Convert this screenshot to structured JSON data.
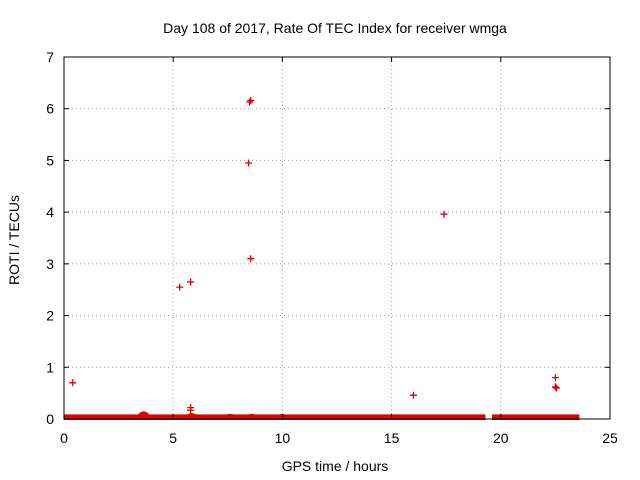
{
  "chart_data": {
    "type": "scatter",
    "title": "Day 108 of 2017, Rate Of TEC Index for receiver wmga",
    "xlabel": "GPS time / hours",
    "ylabel": "ROTI / TECUs",
    "xlim": [
      0,
      25
    ],
    "ylim": [
      0,
      7
    ],
    "xticks": [
      0,
      5,
      10,
      15,
      20,
      25
    ],
    "yticks": [
      0,
      1,
      2,
      3,
      4,
      5,
      6,
      7
    ],
    "grid": true,
    "marker": "+",
    "color": "#e00000",
    "series": [
      {
        "name": "ROTI",
        "points": [
          [
            0.4,
            0.7
          ],
          [
            5.3,
            2.55
          ],
          [
            5.8,
            2.65
          ],
          [
            5.8,
            0.22
          ],
          [
            5.8,
            0.17
          ],
          [
            8.45,
            4.95
          ],
          [
            8.5,
            6.13
          ],
          [
            8.55,
            6.16
          ],
          [
            8.55,
            3.1
          ],
          [
            16.0,
            0.46
          ],
          [
            17.4,
            3.96
          ],
          [
            22.5,
            0.8
          ],
          [
            22.5,
            0.62
          ],
          [
            22.55,
            0.6
          ]
        ]
      }
    ],
    "baseline_band": {
      "description": "dense continuous ROTI values near zero",
      "segments": [
        [
          0.0,
          19.3
        ],
        [
          19.6,
          23.6
        ]
      ],
      "typical_max": 0.05,
      "bumps": [
        [
          3.65,
          0.17
        ],
        [
          5.85,
          0.1
        ],
        [
          7.6,
          0.07
        ],
        [
          8.6,
          0.07
        ],
        [
          10.0,
          0.06
        ]
      ]
    }
  }
}
